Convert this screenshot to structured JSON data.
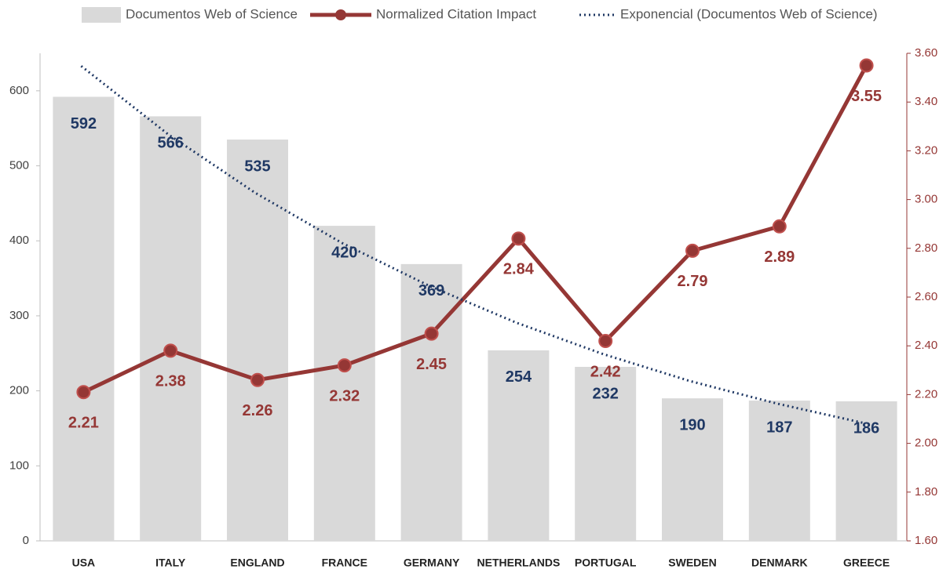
{
  "chart_data": {
    "type": "bar",
    "categories": [
      "USA",
      "ITALY",
      "ENGLAND",
      "FRANCE",
      "GERMANY",
      "NETHERLANDS",
      "PORTUGAL",
      "SWEDEN",
      "DENMARK",
      "GREECE"
    ],
    "series": [
      {
        "name": "Documentos Web of Science",
        "type": "bar",
        "color": "#d9d9d9",
        "label_color": "#1f3864",
        "values": [
          592,
          566,
          535,
          420,
          369,
          254,
          232,
          190,
          187,
          186
        ]
      },
      {
        "name": "Normalized Citation Impact",
        "type": "line",
        "axis": "y2",
        "color": "#953735",
        "label_color": "#953735",
        "values": [
          2.21,
          2.38,
          2.26,
          2.32,
          2.45,
          2.84,
          2.42,
          2.79,
          2.89,
          3.55
        ]
      },
      {
        "name": "Exponencial (Documentos Web of Science)",
        "type": "trendline",
        "color": "#1f3864",
        "values": [
          633,
          542,
          464,
          397,
          340,
          291,
          249,
          213,
          183,
          157
        ]
      }
    ],
    "ylim": [
      0,
      650
    ],
    "yticks": [
      0,
      100,
      200,
      300,
      400,
      500,
      600
    ],
    "y2lim": [
      1.6,
      3.6
    ],
    "y2ticks": [
      {
        "value": 1.6,
        "label": "1.60"
      },
      {
        "value": 1.8,
        "label": "1.80"
      },
      {
        "value": 2.0,
        "label": "2.00"
      },
      {
        "value": 2.2,
        "label": "2.20"
      },
      {
        "value": 2.4,
        "label": "2.40"
      },
      {
        "value": 2.6,
        "label": "2.60"
      },
      {
        "value": 2.8,
        "label": "2.80"
      },
      {
        "value": 3.0,
        "label": "3.00"
      },
      {
        "value": 3.2,
        "label": "3.20"
      },
      {
        "value": 3.4,
        "label": "3.40"
      },
      {
        "value": 3.6,
        "label": "3.60"
      }
    ],
    "legend": "top",
    "grid": false
  }
}
